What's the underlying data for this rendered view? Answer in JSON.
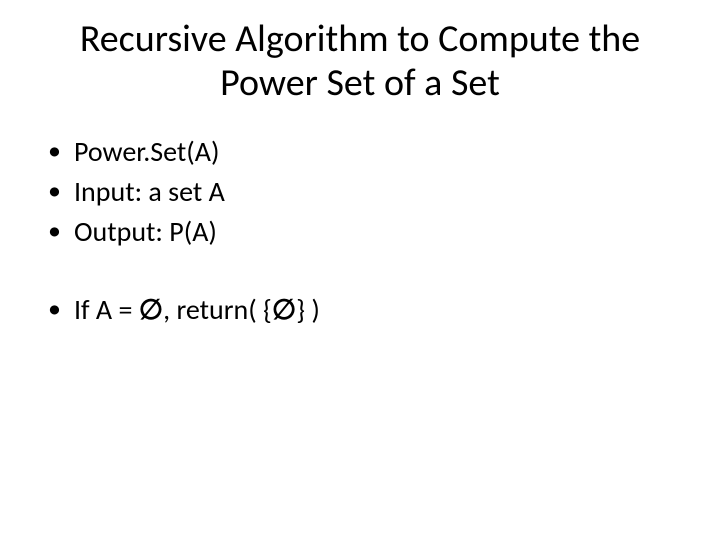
{
  "slide": {
    "background_color": "#ffffff",
    "text_color": "#000000",
    "title_fontsize": 38,
    "body_fontsize": 28,
    "font_family": "Calibri",
    "title": "Recursive Algorithm to Compute the Power Set of a Set",
    "bullets_group1": [
      "Power.Set(A)",
      "Input: a set A",
      "Output: P(A)"
    ],
    "bullets_group2": [
      "If A = ∅, return( {∅} )"
    ],
    "emptyset_symbol": "∅"
  }
}
